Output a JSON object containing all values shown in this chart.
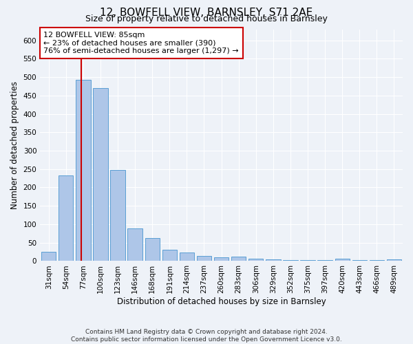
{
  "title": "12, BOWFELL VIEW, BARNSLEY, S71 2AE",
  "subtitle": "Size of property relative to detached houses in Barnsley",
  "xlabel": "Distribution of detached houses by size in Barnsley",
  "ylabel": "Number of detached properties",
  "categories": [
    "31sqm",
    "54sqm",
    "77sqm",
    "100sqm",
    "123sqm",
    "146sqm",
    "168sqm",
    "191sqm",
    "214sqm",
    "237sqm",
    "260sqm",
    "283sqm",
    "306sqm",
    "329sqm",
    "352sqm",
    "375sqm",
    "397sqm",
    "420sqm",
    "443sqm",
    "466sqm",
    "489sqm"
  ],
  "values": [
    25,
    233,
    493,
    470,
    248,
    88,
    63,
    30,
    24,
    14,
    11,
    13,
    7,
    4,
    2,
    2,
    2,
    6,
    2,
    2,
    4
  ],
  "bar_color": "#aec6e8",
  "bar_edge_color": "#5a9fd4",
  "property_line_index": 2,
  "property_line_color": "#cc0000",
  "annotation_text": "12 BOWFELL VIEW: 85sqm\n← 23% of detached houses are smaller (390)\n76% of semi-detached houses are larger (1,297) →",
  "annotation_box_color": "#ffffff",
  "annotation_box_edge_color": "#cc0000",
  "ylim": [
    0,
    630
  ],
  "yticks": [
    0,
    50,
    100,
    150,
    200,
    250,
    300,
    350,
    400,
    450,
    500,
    550,
    600
  ],
  "footnote": "Contains HM Land Registry data © Crown copyright and database right 2024.\nContains public sector information licensed under the Open Government Licence v3.0.",
  "background_color": "#eef2f8",
  "grid_color": "#ffffff",
  "title_fontsize": 11,
  "subtitle_fontsize": 9,
  "xlabel_fontsize": 8.5,
  "ylabel_fontsize": 8.5,
  "tick_fontsize": 7.5,
  "annotation_fontsize": 8,
  "footnote_fontsize": 6.5
}
